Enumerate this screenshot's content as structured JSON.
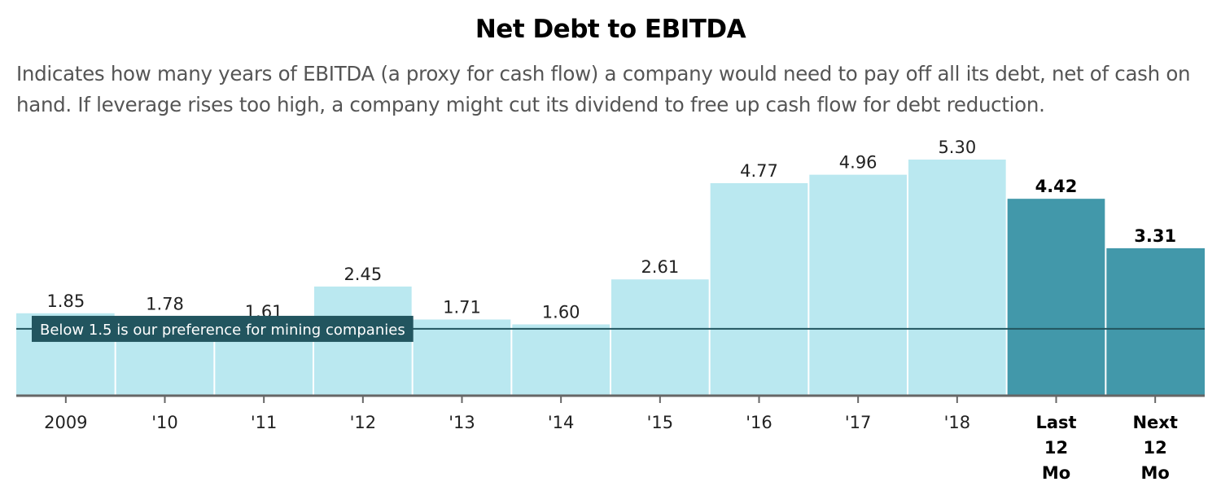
{
  "chart_data": {
    "type": "bar",
    "title": "Net Debt to EBITDA",
    "subtitle": "Indicates how many years of EBITDA (a proxy for cash flow) a company would need to pay off all its debt, net of cash on hand. If leverage rises too high, a company might cut its dividend to free up cash flow for debt reduction.",
    "xlabel": "",
    "ylabel": "",
    "ylim": [
      0,
      5.8
    ],
    "grid": false,
    "categories": [
      "2009",
      "'10",
      "'11",
      "'12",
      "'13",
      "'14",
      "'15",
      "'16",
      "'17",
      "'18",
      "Last 12 Mo",
      "Next 12 Mo"
    ],
    "category_label_lines": [
      [
        "2009"
      ],
      [
        "'10"
      ],
      [
        "'11"
      ],
      [
        "'12"
      ],
      [
        "'13"
      ],
      [
        "'14"
      ],
      [
        "'15"
      ],
      [
        "'16"
      ],
      [
        "'17"
      ],
      [
        "'18"
      ],
      [
        "Last",
        "12",
        "Mo"
      ],
      [
        "Next",
        "12",
        "Mo"
      ]
    ],
    "values": [
      1.85,
      1.78,
      1.61,
      2.45,
      1.71,
      1.6,
      2.61,
      4.77,
      4.96,
      5.3,
      4.42,
      3.31
    ],
    "value_labels": [
      "1.85",
      "1.78",
      "1.61",
      "2.45",
      "1.71",
      "1.60",
      "2.61",
      "4.77",
      "4.96",
      "5.30",
      "4.42",
      "3.31"
    ],
    "highlighted": [
      false,
      false,
      false,
      false,
      false,
      false,
      false,
      false,
      false,
      false,
      true,
      true
    ],
    "reference_line": {
      "value": 1.5,
      "label": "Below 1.5 is our preference for mining companies"
    },
    "colors": {
      "bar": "#bae8f0",
      "bar_highlight": "#4298aa",
      "reference_line": "#22555f",
      "reference_label_bg": "#22555f",
      "axis": "#666666"
    }
  }
}
